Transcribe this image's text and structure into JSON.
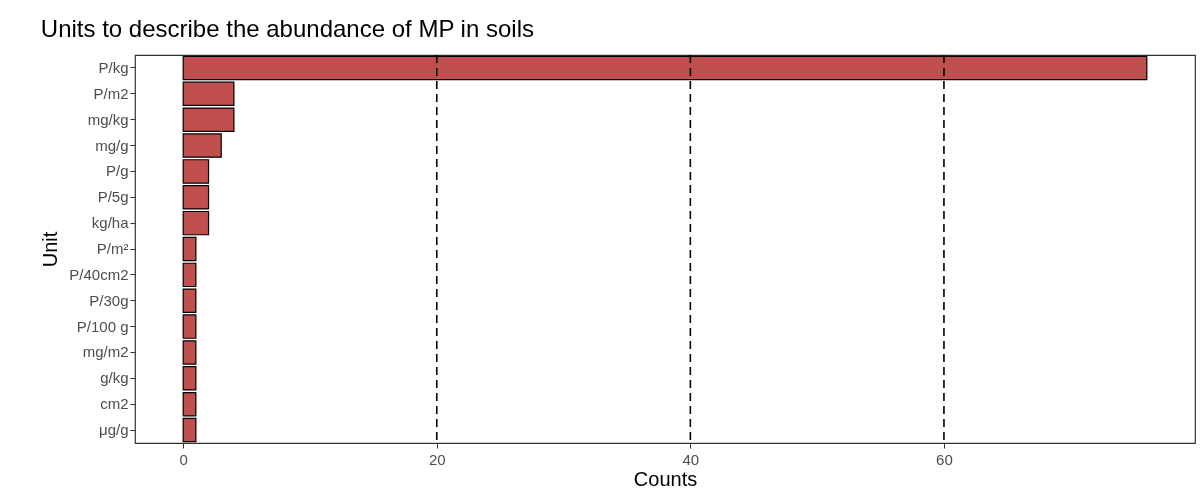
{
  "chart_data": {
    "type": "bar",
    "orientation": "horizontal",
    "title": "Units to describe the abundance of MP in soils",
    "xlabel": "Counts",
    "ylabel": "Unit",
    "categories": [
      "P/kg",
      "P/m2",
      "mg/kg",
      "mg/g",
      "P/g",
      "P/5g",
      "kg/ha",
      "P/m²",
      "P/40cm2",
      "P/30g",
      "P/100 g",
      "mg/m2",
      "g/kg",
      "cm2",
      "μg/g"
    ],
    "values": [
      76,
      4,
      4,
      3,
      2,
      2,
      2,
      1,
      1,
      1,
      1,
      1,
      1,
      1,
      1
    ],
    "color": "#c0504d",
    "xlim": [
      -3.8,
      79.8
    ],
    "xticks": [
      0,
      20,
      40,
      60
    ],
    "ref_lines": [
      {
        "axis": "x",
        "value": 20,
        "color": "#000000",
        "line_style": "dashed"
      },
      {
        "axis": "x",
        "value": 40,
        "color": "#000000",
        "line_style": "dashed"
      },
      {
        "axis": "x",
        "value": 60,
        "color": "#000000",
        "line_style": "dashed"
      }
    ],
    "grid": false
  }
}
